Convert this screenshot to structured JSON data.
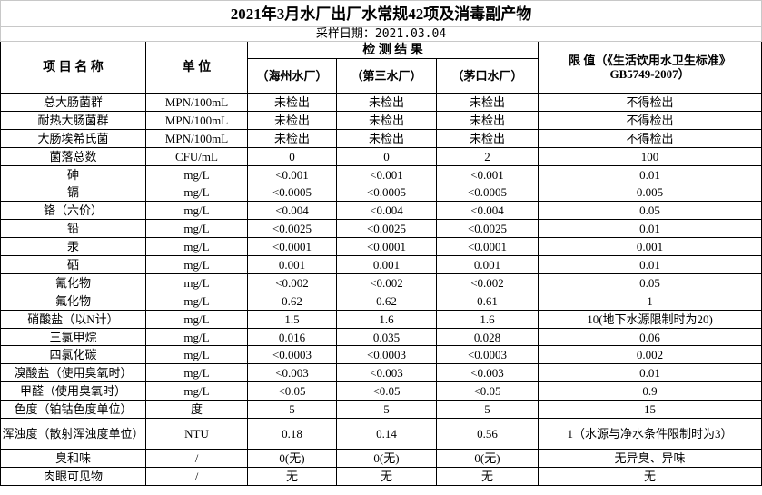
{
  "header": {
    "title": "2021年3月水厂出厂水常规42项及消毒副产物",
    "date": "采样日期：2021.03.04"
  },
  "table": {
    "columns": {
      "item": "项 目 名 称",
      "unit": "单 位",
      "results": "检 测 结 果",
      "plants": [
        "（海州水厂）",
        "（第三水厂）",
        "（茅口水厂）"
      ],
      "limit": [
        "限 值（《生活饮用水卫生标准》",
        "GB5749-2007）"
      ]
    },
    "rows": [
      [
        "总大肠菌群",
        "MPN/100mL",
        "未检出",
        "未检出",
        "未检出",
        "不得检出"
      ],
      [
        "耐热大肠菌群",
        "MPN/100mL",
        "未检出",
        "未检出",
        "未检出",
        "不得检出"
      ],
      [
        "大肠埃希氏菌",
        "MPN/100mL",
        "未检出",
        "未检出",
        "未检出",
        "不得检出"
      ],
      [
        "菌落总数",
        "CFU/mL",
        "0",
        "0",
        "2",
        "100"
      ],
      [
        "砷",
        "mg/L",
        "<0.001",
        "<0.001",
        "<0.001",
        "0.01"
      ],
      [
        "镉",
        "mg/L",
        "<0.0005",
        "<0.0005",
        "<0.0005",
        "0.005"
      ],
      [
        "铬（六价）",
        "mg/L",
        "<0.004",
        "<0.004",
        "<0.004",
        "0.05"
      ],
      [
        "铅",
        "mg/L",
        "<0.0025",
        "<0.0025",
        "<0.0025",
        "0.01"
      ],
      [
        "汞",
        "mg/L",
        "<0.0001",
        "<0.0001",
        "<0.0001",
        "0.001"
      ],
      [
        "硒",
        "mg/L",
        "0.001",
        "0.001",
        "0.001",
        "0.01"
      ],
      [
        "氰化物",
        "mg/L",
        "<0.002",
        "<0.002",
        "<0.002",
        "0.05"
      ],
      [
        "氟化物",
        "mg/L",
        "0.62",
        "0.62",
        "0.61",
        "1"
      ],
      [
        "硝酸盐（以N计）",
        "mg/L",
        "1.5",
        "1.6",
        "1.6",
        "10(地下水源限制时为20)"
      ],
      [
        "三氯甲烷",
        "mg/L",
        "0.016",
        "0.035",
        "0.028",
        "0.06"
      ],
      [
        "四氯化碳",
        "mg/L",
        "<0.0003",
        "<0.0003",
        "<0.0003",
        "0.002"
      ],
      [
        "溴酸盐（使用臭氧时）",
        "mg/L",
        "<0.003",
        "<0.003",
        "<0.003",
        "0.01"
      ],
      [
        "甲醛（使用臭氧时）",
        "mg/L",
        "<0.05",
        "<0.05",
        "<0.05",
        "0.9"
      ],
      [
        "色度（铂钴色度单位）",
        "度",
        "5",
        "5",
        "5",
        "15"
      ],
      [
        "浑浊度（散射浑浊度单位）",
        "NTU",
        "0.18",
        "0.14",
        "0.56",
        "1（水源与净水条件限制时为3）"
      ],
      [
        "臭和味",
        "/",
        "0(无)",
        "0(无)",
        "0(无)",
        "无异臭、异味"
      ],
      [
        "肉眼可见物",
        "/",
        "无",
        "无",
        "无",
        "无"
      ]
    ]
  }
}
